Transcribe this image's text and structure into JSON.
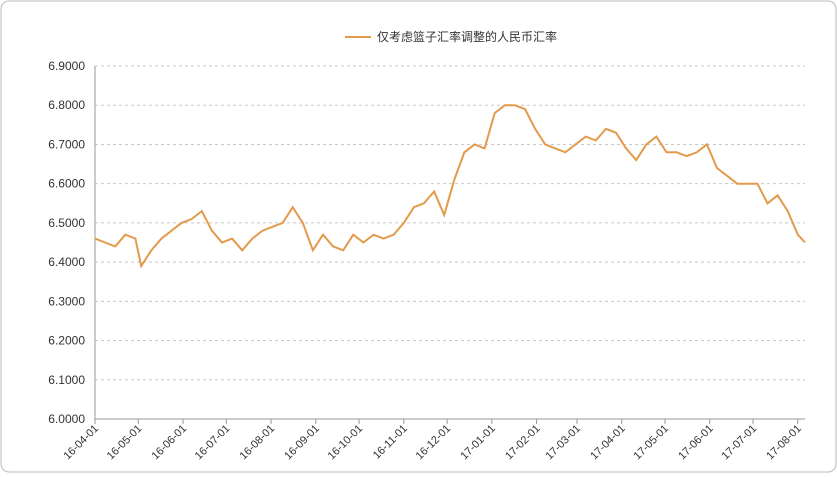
{
  "chart_data": {
    "type": "line",
    "series": [
      {
        "name": "仅考虑篮子汇率调整的人民币汇率",
        "color": "#e39a4a",
        "values": [
          6.46,
          6.45,
          6.44,
          6.47,
          6.46,
          6.39,
          6.43,
          6.46,
          6.48,
          6.5,
          6.51,
          6.53,
          6.48,
          6.45,
          6.46,
          6.43,
          6.46,
          6.48,
          6.49,
          6.5,
          6.54,
          6.5,
          6.43,
          6.47,
          6.44,
          6.43,
          6.47,
          6.45,
          6.47,
          6.46,
          6.47,
          6.5,
          6.54,
          6.55,
          6.58,
          6.52,
          6.61,
          6.68,
          6.7,
          6.69,
          6.78,
          6.8,
          6.8,
          6.79,
          6.74,
          6.7,
          6.69,
          6.68,
          6.7,
          6.72,
          6.71,
          6.74,
          6.73,
          6.69,
          6.66,
          6.7,
          6.72,
          6.68,
          6.68,
          6.67,
          6.68,
          6.7,
          6.64,
          6.62,
          6.6,
          6.6,
          6.6,
          6.55,
          6.57,
          6.53,
          6.47,
          6.45
        ]
      }
    ],
    "x": [
      "16-04-01",
      "16-04-08",
      "16-04-15",
      "16-04-22",
      "16-04-29",
      "16-05-03",
      "16-05-10",
      "16-05-17",
      "16-05-24",
      "16-05-31",
      "16-06-07",
      "16-06-14",
      "16-06-21",
      "16-06-28",
      "16-07-05",
      "16-07-12",
      "16-07-19",
      "16-07-26",
      "16-08-02",
      "16-08-09",
      "16-08-16",
      "16-08-23",
      "16-08-30",
      "16-09-06",
      "16-09-13",
      "16-09-20",
      "16-09-27",
      "16-10-04",
      "16-10-11",
      "16-10-18",
      "16-10-25",
      "16-11-01",
      "16-11-08",
      "16-11-15",
      "16-11-22",
      "16-11-29",
      "16-12-06",
      "16-12-13",
      "16-12-20",
      "16-12-27",
      "17-01-03",
      "17-01-10",
      "17-01-17",
      "17-01-24",
      "17-01-31",
      "17-02-07",
      "17-02-14",
      "17-02-21",
      "17-02-28",
      "17-03-07",
      "17-03-14",
      "17-03-21",
      "17-03-28",
      "17-04-04",
      "17-04-11",
      "17-04-18",
      "17-04-25",
      "17-05-02",
      "17-05-09",
      "17-05-16",
      "17-05-23",
      "17-05-30",
      "17-06-06",
      "17-06-13",
      "17-06-20",
      "17-06-27",
      "17-07-04",
      "17-07-11",
      "17-07-18",
      "17-07-25",
      "17-08-01",
      "17-08-06"
    ],
    "xlim": [
      "16-04-01",
      "17-08-06"
    ],
    "xticks": [
      "16-04-01",
      "16-05-01",
      "16-06-01",
      "16-07-01",
      "16-08-01",
      "16-09-01",
      "16-10-01",
      "16-11-01",
      "16-12-01",
      "17-01-01",
      "17-02-01",
      "17-03-01",
      "17-04-01",
      "17-05-01",
      "17-06-01",
      "17-07-01",
      "17-08-01"
    ],
    "ylim": [
      6.0,
      6.9
    ],
    "yticks": [
      {
        "value": 6.0,
        "label": "6.0000"
      },
      {
        "value": 6.1,
        "label": "6.1000"
      },
      {
        "value": 6.2,
        "label": "6.2000"
      },
      {
        "value": 6.3,
        "label": "6.3000"
      },
      {
        "value": 6.4,
        "label": "6.4000"
      },
      {
        "value": 6.5,
        "label": "6.5000"
      },
      {
        "value": 6.6,
        "label": "6.6000"
      },
      {
        "value": 6.7,
        "label": "6.7000"
      },
      {
        "value": 6.8,
        "label": "6.8000"
      },
      {
        "value": 6.9,
        "label": "6.9000"
      }
    ],
    "grid": true,
    "legend": "top"
  }
}
